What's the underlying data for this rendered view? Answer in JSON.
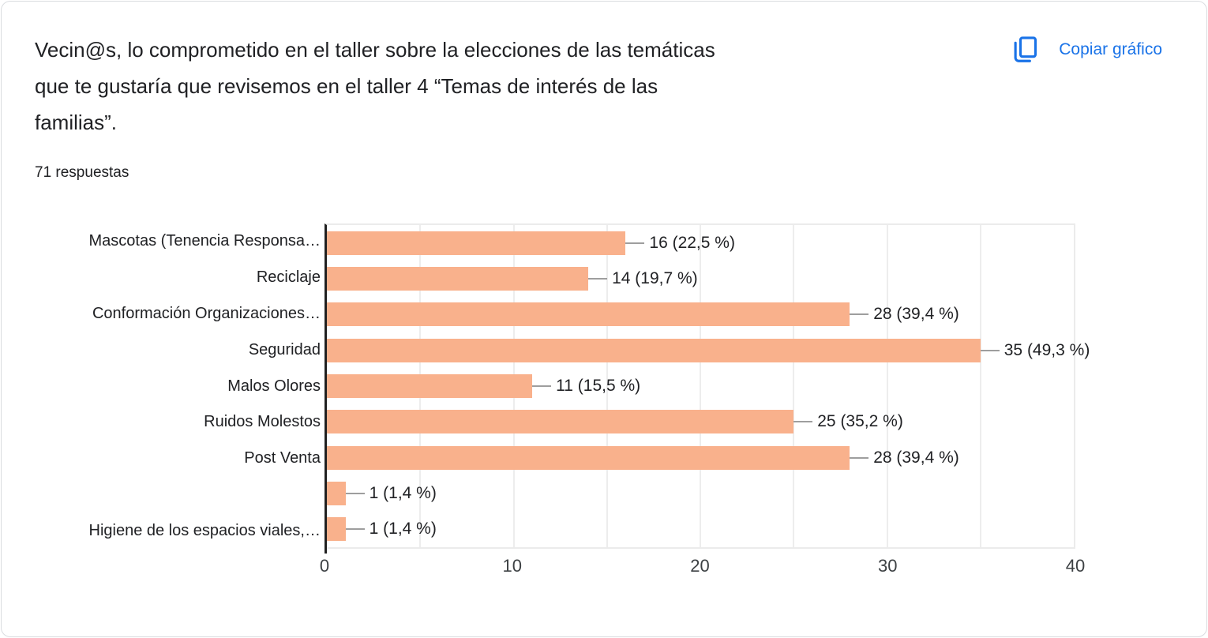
{
  "header": {
    "title_lines": [
      "Vecin@s, lo comprometido en el taller sobre la elecciones de las temáticas",
      "que te gustaría que revisemos en el taller 4 “Temas de interés de las",
      "familias”."
    ],
    "responses": "71 respuestas",
    "copy_button": "Copiar gráfico"
  },
  "colors": {
    "bar": "#F9B18C",
    "accent_blue": "#1A73E8",
    "text_dark": "#202124",
    "gridline": "#EDEDED",
    "axis_line": "#212121",
    "connector": "#9E9E9E"
  },
  "chart_data": {
    "type": "bar",
    "orientation": "horizontal",
    "title": "Vecin@s, lo comprometido en el taller sobre la elecciones de las temáticas que te gustaría que revisemos en el taller 4 “Temas de interés de las familias”.",
    "subtitle": "71 respuestas",
    "categories": [
      "Mascotas (Tenencia Responsa…",
      "Reciclaje",
      "Conformación Organizaciones…",
      "Seguridad",
      "Malos Olores",
      "Ruidos Molestos",
      "Post Venta",
      "",
      "Higiene de los espacios viales,…"
    ],
    "values": [
      16,
      14,
      28,
      35,
      11,
      25,
      28,
      1,
      1
    ],
    "value_labels": [
      "16 (22,5 %)",
      "14 (19,7 %)",
      "28 (39,4 %)",
      "35 (49,3 %)",
      "11 (15,5 %)",
      "25 (35,2 %)",
      "28 (39,4 %)",
      "1 (1,4 %)",
      "1 (1,4 %)"
    ],
    "xlim": [
      0,
      40
    ],
    "x_ticks": [
      0,
      10,
      20,
      30,
      40
    ],
    "gridline_step": 5,
    "grid": true,
    "legend": "none",
    "total_responses": 71
  }
}
